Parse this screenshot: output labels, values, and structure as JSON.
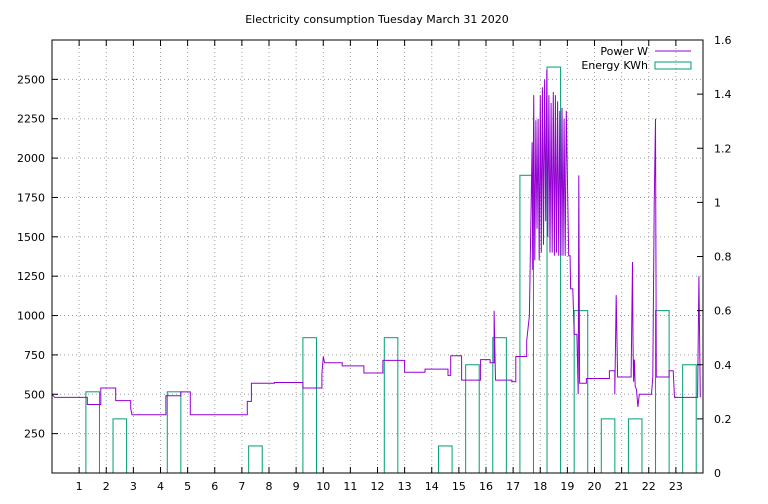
{
  "chart_data": {
    "type": "line",
    "title": "Electricity consumption Tuesday March 31 2020",
    "grid": true,
    "legend_position": "top-right",
    "x_axis": {
      "range": [
        0,
        24
      ],
      "ticks": [
        1,
        2,
        3,
        4,
        5,
        6,
        7,
        8,
        9,
        10,
        11,
        12,
        13,
        14,
        15,
        16,
        17,
        18,
        19,
        20,
        21,
        22,
        23
      ]
    },
    "y_axis_left": {
      "range": [
        0,
        2750
      ],
      "ticks": [
        250,
        500,
        750,
        1000,
        1250,
        1500,
        1750,
        2000,
        2250,
        2500
      ]
    },
    "y_axis_right": {
      "range": [
        0,
        1.6
      ],
      "ticks": [
        0,
        0.2,
        0.4,
        0.6,
        0.8,
        1,
        1.2,
        1.4,
        1.6
      ]
    },
    "series": [
      {
        "name": "Power W",
        "type": "line",
        "axis": "left",
        "color": "#9400d3",
        "points": [
          [
            0.0,
            500
          ],
          [
            0.1,
            480
          ],
          [
            1.3,
            480
          ],
          [
            1.3,
            435
          ],
          [
            1.8,
            435
          ],
          [
            1.8,
            540
          ],
          [
            2.35,
            540
          ],
          [
            2.35,
            460
          ],
          [
            2.9,
            460
          ],
          [
            2.9,
            410
          ],
          [
            2.95,
            370
          ],
          [
            4.2,
            370
          ],
          [
            4.2,
            490
          ],
          [
            4.75,
            490
          ],
          [
            4.75,
            515
          ],
          [
            5.1,
            515
          ],
          [
            5.1,
            370
          ],
          [
            7.2,
            370
          ],
          [
            7.2,
            455
          ],
          [
            7.35,
            455
          ],
          [
            7.35,
            570
          ],
          [
            8.2,
            570
          ],
          [
            8.2,
            575
          ],
          [
            9.25,
            575
          ],
          [
            9.25,
            540
          ],
          [
            9.95,
            540
          ],
          [
            9.95,
            630
          ],
          [
            10.0,
            740
          ],
          [
            10.05,
            700
          ],
          [
            10.7,
            700
          ],
          [
            10.7,
            680
          ],
          [
            11.5,
            680
          ],
          [
            11.5,
            635
          ],
          [
            12.2,
            635
          ],
          [
            12.2,
            715
          ],
          [
            13.0,
            715
          ],
          [
            13.0,
            640
          ],
          [
            13.75,
            640
          ],
          [
            13.75,
            660
          ],
          [
            14.6,
            660
          ],
          [
            14.6,
            620
          ],
          [
            14.7,
            620
          ],
          [
            14.7,
            745
          ],
          [
            15.1,
            745
          ],
          [
            15.1,
            590
          ],
          [
            15.8,
            590
          ],
          [
            15.8,
            720
          ],
          [
            16.15,
            720
          ],
          [
            16.15,
            700
          ],
          [
            16.3,
            700
          ],
          [
            16.3,
            1030
          ],
          [
            16.35,
            590
          ],
          [
            16.95,
            590
          ],
          [
            16.95,
            580
          ],
          [
            17.1,
            580
          ],
          [
            17.1,
            740
          ],
          [
            17.5,
            740
          ],
          [
            17.5,
            840
          ],
          [
            17.6,
            1000
          ],
          [
            17.7,
            2100
          ],
          [
            17.72,
            1290
          ],
          [
            17.76,
            2400
          ],
          [
            17.8,
            1350
          ],
          [
            17.84,
            2240
          ],
          [
            17.88,
            1550
          ],
          [
            17.92,
            2250
          ],
          [
            17.96,
            1350
          ],
          [
            18.0,
            2400
          ],
          [
            18.04,
            1400
          ],
          [
            18.08,
            2450
          ],
          [
            18.12,
            1450
          ],
          [
            18.16,
            2500
          ],
          [
            18.2,
            1600
          ],
          [
            18.24,
            2560
          ],
          [
            18.28,
            1500
          ],
          [
            18.32,
            2400
          ],
          [
            18.36,
            1400
          ],
          [
            18.4,
            2350
          ],
          [
            18.44,
            1400
          ],
          [
            18.48,
            2420
          ],
          [
            18.52,
            1380
          ],
          [
            18.56,
            2400
          ],
          [
            18.6,
            1400
          ],
          [
            18.64,
            2360
          ],
          [
            18.68,
            1380
          ],
          [
            18.72,
            2300
          ],
          [
            18.76,
            1380
          ],
          [
            18.8,
            2320
          ],
          [
            18.84,
            1380
          ],
          [
            18.88,
            2250
          ],
          [
            18.92,
            1380
          ],
          [
            18.96,
            2300
          ],
          [
            19.05,
            1380
          ],
          [
            19.1,
            1380
          ],
          [
            19.12,
            1170
          ],
          [
            19.2,
            1170
          ],
          [
            19.25,
            880
          ],
          [
            19.35,
            880
          ],
          [
            19.4,
            500
          ],
          [
            19.42,
            1890
          ],
          [
            19.45,
            570
          ],
          [
            19.7,
            570
          ],
          [
            19.7,
            600
          ],
          [
            20.55,
            600
          ],
          [
            20.55,
            650
          ],
          [
            20.75,
            650
          ],
          [
            20.75,
            500
          ],
          [
            20.8,
            1130
          ],
          [
            20.85,
            610
          ],
          [
            21.35,
            610
          ],
          [
            21.4,
            1340
          ],
          [
            21.42,
            840
          ],
          [
            21.44,
            580
          ],
          [
            21.47,
            720
          ],
          [
            21.5,
            550
          ],
          [
            21.55,
            530
          ],
          [
            21.6,
            420
          ],
          [
            21.65,
            500
          ],
          [
            22.1,
            500
          ],
          [
            22.15,
            610
          ],
          [
            22.2,
            1700
          ],
          [
            22.25,
            2250
          ],
          [
            22.28,
            610
          ],
          [
            22.75,
            610
          ],
          [
            22.75,
            650
          ],
          [
            22.9,
            650
          ],
          [
            22.95,
            480
          ],
          [
            23.8,
            480
          ],
          [
            23.85,
            1250
          ],
          [
            23.9,
            480
          ]
        ]
      },
      {
        "name": "Energy KWh",
        "type": "bar",
        "axis": "right",
        "color": "#009e73",
        "bar_width": 0.5,
        "categories": [
          0,
          1,
          2,
          3,
          4,
          5,
          6,
          7,
          8,
          9,
          10,
          11,
          12,
          13,
          14,
          15,
          16,
          17,
          18,
          19,
          20,
          21,
          22,
          23
        ],
        "values": [
          0,
          0.3,
          0.2,
          0,
          0.3,
          0,
          0,
          0.1,
          0,
          0.5,
          0,
          0,
          0.5,
          0,
          0.1,
          0.4,
          0.5,
          1.1,
          1.5,
          0.6,
          0.2,
          0.2,
          0.6,
          0.4
        ]
      }
    ]
  }
}
